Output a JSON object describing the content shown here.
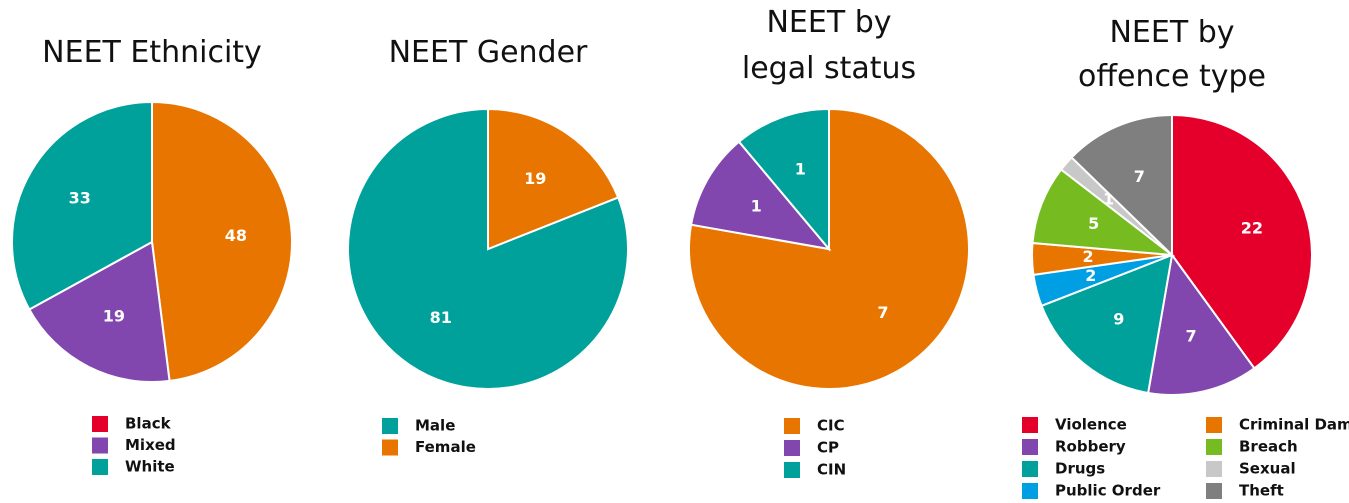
{
  "chart_data": [
    {
      "type": "pie",
      "title": [
        "NEET Ethnicity"
      ],
      "categories": [
        "Black",
        "Mixed",
        "White"
      ],
      "values": [
        48,
        19,
        33
      ],
      "colors": [
        "#e87500",
        "#8246af",
        "#00a19a"
      ],
      "legend_colors": [
        "#e4002b",
        "#8246af",
        "#00a19a"
      ],
      "direction": "clockwise"
    },
    {
      "type": "pie",
      "title": [
        "NEET Gender"
      ],
      "categories": [
        "Male",
        "Female"
      ],
      "values": [
        81,
        19
      ],
      "colors": [
        "#00a19a",
        "#e87500"
      ],
      "legend_colors": [
        "#00a19a",
        "#e87500"
      ],
      "direction": "counterclockwise"
    },
    {
      "type": "pie",
      "title": [
        "NEET by",
        "legal status"
      ],
      "categories": [
        "CIC",
        "CP",
        "CIN"
      ],
      "values": [
        7,
        1,
        1
      ],
      "colors": [
        "#e87500",
        "#8246af",
        "#00a19a"
      ],
      "legend_colors": [
        "#e87500",
        "#8246af",
        "#00a19a"
      ],
      "direction": "clockwise"
    },
    {
      "type": "pie",
      "title": [
        "NEET by",
        "offence type"
      ],
      "categories": [
        "Violence",
        "Robbery",
        "Drugs",
        "Public Order",
        "Criminal Damage",
        "Breach",
        "Sexual",
        "Theft"
      ],
      "values": [
        22,
        7,
        9,
        2,
        2,
        5,
        1,
        7
      ],
      "colors": [
        "#e4002b",
        "#8246af",
        "#00a19a",
        "#009fe3",
        "#e87500",
        "#76bc21",
        "#c8c8c8",
        "#7f7f7f"
      ],
      "legend_colors": [
        "#e4002b",
        "#8246af",
        "#00a19a",
        "#009fe3",
        "#e87500",
        "#76bc21",
        "#c8c8c8",
        "#7f7f7f"
      ],
      "direction": "clockwise"
    }
  ]
}
